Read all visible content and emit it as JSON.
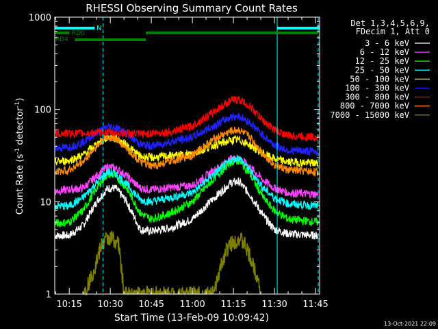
{
  "chart_data": {
    "type": "line",
    "title": "RHESSI Observing Summary Count Rates",
    "xlabel": "Start Time (13-Feb-09 10:09:42)",
    "ylabel": "Count Rate (s",
    "ylabel_sup1": "-1",
    "ylabel_mid": " detector",
    "ylabel_sup2": "-1",
    "ylabel_end": ")",
    "yscale": "log",
    "ylim": [
      1,
      1000
    ],
    "xlim": [
      "10:09:42",
      "11:46:30"
    ],
    "x_ticks": [
      "10:15",
      "10:30",
      "10:45",
      "11:00",
      "11:15",
      "11:30",
      "11:45"
    ],
    "y_ticks": [
      "1",
      "10",
      "100",
      "1000"
    ],
    "grid": false,
    "legend_header": [
      "Det 1,3,4,5,6,9,",
      "FDecim 1, Att 0"
    ],
    "legend_position": "right",
    "series": [
      {
        "name": "3 - 6 keV",
        "color": "#ffffff",
        "points": [
          [
            "10:09:42",
            4.3
          ],
          [
            "10:15",
            4.3
          ],
          [
            "10:20",
            5.5
          ],
          [
            "10:25",
            10
          ],
          [
            "10:29",
            14
          ],
          [
            "10:32",
            14
          ],
          [
            "10:36",
            10
          ],
          [
            "10:41",
            5
          ],
          [
            "10:45",
            4.8
          ],
          [
            "10:52",
            5.2
          ],
          [
            "11:00",
            6.5
          ],
          [
            "11:08",
            11
          ],
          [
            "11:14",
            16
          ],
          [
            "11:17",
            16.5
          ],
          [
            "11:21",
            12
          ],
          [
            "11:26",
            7
          ],
          [
            "11:30",
            5
          ],
          [
            "11:35",
            4.5
          ],
          [
            "11:46",
            4.3
          ]
        ]
      },
      {
        "name": "6 - 12 keV",
        "color": "#ff44ff",
        "points": [
          [
            "10:09:42",
            13
          ],
          [
            "10:20",
            14
          ],
          [
            "10:25",
            19
          ],
          [
            "10:29",
            24
          ],
          [
            "10:32",
            23
          ],
          [
            "10:36",
            19
          ],
          [
            "10:41",
            14
          ],
          [
            "10:45",
            13.5
          ],
          [
            "11:00",
            15
          ],
          [
            "11:08",
            22
          ],
          [
            "11:14",
            29
          ],
          [
            "11:17",
            30
          ],
          [
            "11:21",
            24
          ],
          [
            "11:26",
            17
          ],
          [
            "11:30",
            14
          ],
          [
            "11:35",
            12.5
          ],
          [
            "11:46",
            12
          ]
        ]
      },
      {
        "name": "12 - 25 keV",
        "color": "#00ff00",
        "points": [
          [
            "10:09:42",
            5.8
          ],
          [
            "10:15",
            6
          ],
          [
            "10:20",
            8
          ],
          [
            "10:25",
            14
          ],
          [
            "10:29",
            20
          ],
          [
            "10:32",
            19
          ],
          [
            "10:36",
            14
          ],
          [
            "10:41",
            7.5
          ],
          [
            "10:45",
            6.5
          ],
          [
            "10:52",
            7.5
          ],
          [
            "11:00",
            10
          ],
          [
            "11:08",
            18
          ],
          [
            "11:14",
            27
          ],
          [
            "11:17",
            28
          ],
          [
            "11:21",
            20
          ],
          [
            "11:26",
            11
          ],
          [
            "11:30",
            8
          ],
          [
            "11:35",
            6.5
          ],
          [
            "11:46",
            6
          ]
        ]
      },
      {
        "name": "25 - 50 keV",
        "color": "#00ffff",
        "points": [
          [
            "10:09:42",
            9
          ],
          [
            "10:15",
            9
          ],
          [
            "10:20",
            11
          ],
          [
            "10:25",
            16
          ],
          [
            "10:29",
            21
          ],
          [
            "10:32",
            20
          ],
          [
            "10:36",
            15.5
          ],
          [
            "10:41",
            10.5
          ],
          [
            "10:45",
            10
          ],
          [
            "11:00",
            12.5
          ],
          [
            "11:08",
            20
          ],
          [
            "11:14",
            28
          ],
          [
            "11:17",
            30
          ],
          [
            "11:21",
            22
          ],
          [
            "11:26",
            14
          ],
          [
            "11:30",
            11
          ],
          [
            "11:35",
            9.5
          ],
          [
            "11:46",
            9
          ]
        ]
      },
      {
        "name": "50 - 100 keV",
        "color": "#ffff00",
        "points": [
          [
            "10:09:42",
            27
          ],
          [
            "10:15",
            28
          ],
          [
            "10:20",
            32
          ],
          [
            "10:25",
            42
          ],
          [
            "10:29",
            50
          ],
          [
            "10:32",
            49
          ],
          [
            "10:36",
            41
          ],
          [
            "10:41",
            31
          ],
          [
            "10:45",
            30
          ],
          [
            "11:00",
            33
          ],
          [
            "11:08",
            41
          ],
          [
            "11:14",
            46
          ],
          [
            "11:17",
            47
          ],
          [
            "11:21",
            41
          ],
          [
            "11:26",
            33
          ],
          [
            "11:30",
            29
          ],
          [
            "11:35",
            27
          ],
          [
            "11:46",
            26
          ]
        ]
      },
      {
        "name": "100 - 300 keV",
        "color": "#2222ff",
        "points": [
          [
            "10:09:42",
            38
          ],
          [
            "10:15",
            39
          ],
          [
            "10:20",
            44
          ],
          [
            "10:25",
            56
          ],
          [
            "10:29",
            65
          ],
          [
            "10:32",
            64
          ],
          [
            "10:36",
            55
          ],
          [
            "10:41",
            42
          ],
          [
            "10:45",
            40
          ],
          [
            "11:00",
            50
          ],
          [
            "11:08",
            67
          ],
          [
            "11:14",
            83
          ],
          [
            "11:17",
            85
          ],
          [
            "11:21",
            72
          ],
          [
            "11:26",
            52
          ],
          [
            "11:30",
            41
          ],
          [
            "11:35",
            36
          ],
          [
            "11:46",
            35
          ]
        ]
      },
      {
        "name": "300 - 800 keV",
        "color": "#ff0000",
        "points": [
          [
            "10:09:42",
            55
          ],
          [
            "10:15",
            55
          ],
          [
            "10:20",
            55
          ],
          [
            "10:25",
            56
          ],
          [
            "10:30",
            56
          ],
          [
            "10:35",
            55
          ],
          [
            "10:41",
            54
          ],
          [
            "10:45",
            55
          ],
          [
            "10:52",
            57
          ],
          [
            "11:00",
            66
          ],
          [
            "11:08",
            95
          ],
          [
            "11:14",
            125
          ],
          [
            "11:17",
            128
          ],
          [
            "11:21",
            108
          ],
          [
            "11:26",
            75
          ],
          [
            "11:30",
            60
          ],
          [
            "11:35",
            52
          ],
          [
            "11:46",
            50
          ]
        ]
      },
      {
        "name": "800 - 7000 keV",
        "color": "#ff8800",
        "points": [
          [
            "10:09:42",
            21
          ],
          [
            "10:15",
            22
          ],
          [
            "10:20",
            27
          ],
          [
            "10:25",
            40
          ],
          [
            "10:29",
            50
          ],
          [
            "10:32",
            48
          ],
          [
            "10:36",
            38
          ],
          [
            "10:41",
            27
          ],
          [
            "10:45",
            24
          ],
          [
            "11:00",
            32
          ],
          [
            "11:08",
            48
          ],
          [
            "11:14",
            58
          ],
          [
            "11:17",
            60
          ],
          [
            "11:21",
            50
          ],
          [
            "11:26",
            33
          ],
          [
            "11:30",
            25
          ],
          [
            "11:35",
            22
          ],
          [
            "11:46",
            21
          ]
        ]
      },
      {
        "name": "7000 - 15000 keV",
        "color": "#808000",
        "points": [
          [
            "10:20",
            1
          ],
          [
            "10:23",
            1.5
          ],
          [
            "10:25",
            2.3
          ],
          [
            "10:27",
            3.5
          ],
          [
            "10:29",
            4
          ],
          [
            "10:31",
            4
          ],
          [
            "10:33",
            3.5
          ],
          [
            "10:34",
            2
          ],
          [
            "10:35",
            1
          ],
          [
            "11:08",
            1
          ],
          [
            "11:10",
            1.8
          ],
          [
            "11:12",
            2.8
          ],
          [
            "11:14",
            3.5
          ],
          [
            "11:17",
            4
          ],
          [
            "11:19",
            3.5
          ],
          [
            "11:21",
            2.5
          ],
          [
            "11:24",
            1.5
          ],
          [
            "11:25",
            1
          ]
        ]
      }
    ],
    "annotations": {
      "labels": [
        "N",
        "RD0",
        "RD4"
      ],
      "night_bars": [
        [
          "10:09:42",
          "10:24:20"
        ],
        [
          "11:31:00",
          "11:46:30"
        ]
      ],
      "rd0_bars": [
        [
          "10:09:42",
          "10:15:00"
        ],
        [
          "10:43:00",
          "11:46:00"
        ]
      ],
      "rd4_bar": [
        [
          "10:17:00",
          "10:43:00"
        ]
      ],
      "solid_lines": [
        "10:09:42",
        "11:31:00"
      ],
      "dashed_lines": [
        "10:27:20",
        "11:46:00"
      ]
    },
    "colors": {
      "night": "#00ffff",
      "decim": "#008000",
      "axis": "#ffffff"
    }
  },
  "timestamp": "13-Oct-2021 22:09"
}
